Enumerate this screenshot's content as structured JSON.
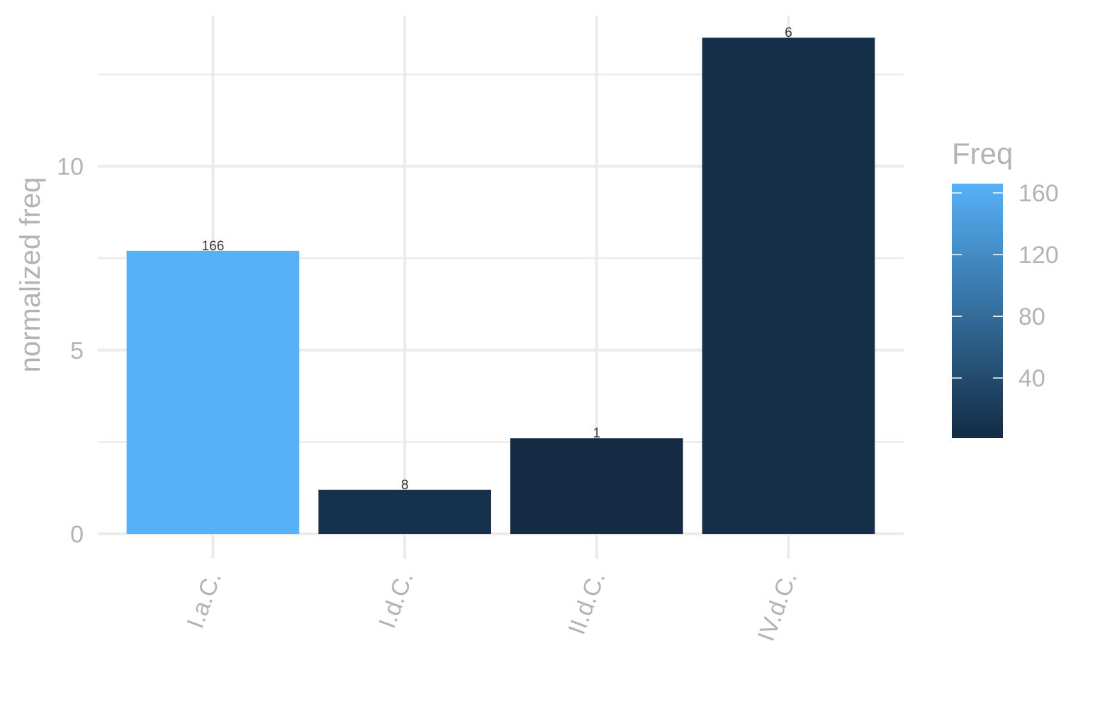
{
  "chart_data": {
    "type": "bar",
    "categories": [
      "I.a.C.",
      "I.d.C.",
      "II.d.C.",
      "IV.d.C."
    ],
    "values": [
      7.7,
      1.2,
      2.6,
      13.5
    ],
    "labels": [
      "166",
      "8",
      "1",
      "6"
    ],
    "fill_values": [
      166,
      8,
      1,
      6
    ],
    "xlabel": "",
    "ylabel": "normalized freq",
    "ylim": [
      0,
      14.1
    ],
    "y_ticks": [
      0,
      5,
      10
    ],
    "y_tick_labels": [
      "0",
      "5",
      "10"
    ],
    "grid": true,
    "legend": {
      "title": "Freq",
      "placement": "right",
      "range": [
        1,
        166
      ],
      "ticks": [
        40,
        80,
        120,
        160
      ],
      "tick_labels": [
        "40",
        "80",
        "120",
        "160"
      ],
      "color_low": "#132b43",
      "color_high": "#56b1f7"
    }
  }
}
